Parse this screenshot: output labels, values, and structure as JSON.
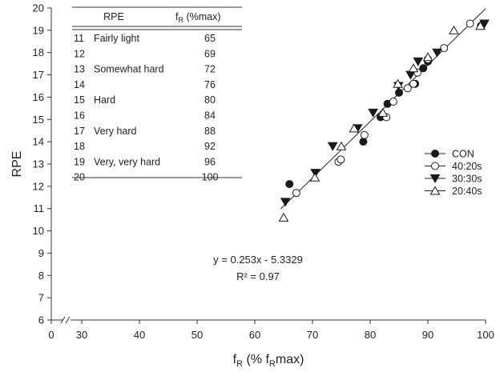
{
  "chart_data": {
    "type": "scatter",
    "xlabel": "f",
    "xlabel_sub": "R",
    "xlabel_rest_1": " (% f",
    "xlabel_sub2": "R",
    "xlabel_rest_2": "max)",
    "ylabel": "RPE",
    "xlim": [
      0,
      100
    ],
    "ylim": [
      6,
      20
    ],
    "x_break_after": 0,
    "x_break_resume": 25,
    "x_ticks": [
      0,
      30,
      40,
      50,
      60,
      70,
      80,
      90,
      100
    ],
    "x_tick_labels": [
      "0",
      "30",
      "40",
      "50",
      "60",
      "70",
      "80",
      "90",
      "100"
    ],
    "y_ticks": [
      6,
      7,
      8,
      9,
      10,
      11,
      12,
      13,
      14,
      15,
      16,
      17,
      18,
      19,
      20
    ],
    "y_tick_labels": [
      "6",
      "7",
      "8",
      "9",
      "10",
      "11",
      "12",
      "13",
      "14",
      "15",
      "16",
      "17",
      "18",
      "19",
      "20"
    ],
    "series": [
      {
        "name": "CON",
        "marker": "filled-circle",
        "points": [
          [
            66.0,
            12.1
          ],
          [
            78.8,
            14.0
          ],
          [
            81.8,
            15.1
          ],
          [
            83.0,
            15.7
          ],
          [
            85.0,
            16.2
          ],
          [
            87.8,
            16.6
          ],
          [
            89.2,
            17.3
          ],
          [
            90.0,
            17.6
          ],
          [
            99.2,
            19.2
          ]
        ]
      },
      {
        "name": "40:20s",
        "marker": "open-circle",
        "points": [
          [
            67.2,
            11.7
          ],
          [
            74.5,
            13.1
          ],
          [
            74.9,
            13.2
          ],
          [
            79.0,
            14.3
          ],
          [
            82.8,
            15.1
          ],
          [
            84.0,
            15.8
          ],
          [
            86.5,
            16.4
          ],
          [
            87.5,
            16.6
          ],
          [
            88.2,
            17.1
          ],
          [
            90.0,
            17.7
          ],
          [
            92.8,
            18.2
          ],
          [
            97.3,
            19.3
          ]
        ]
      },
      {
        "name": "30:30s",
        "marker": "filled-triangle-down",
        "points": [
          [
            65.3,
            11.3
          ],
          [
            70.5,
            12.6
          ],
          [
            73.5,
            13.8
          ],
          [
            77.8,
            14.6
          ],
          [
            80.5,
            15.3
          ],
          [
            84.9,
            16.5
          ],
          [
            87.0,
            17.0
          ],
          [
            88.3,
            17.6
          ],
          [
            91.6,
            18.0
          ],
          [
            99.8,
            19.3
          ]
        ]
      },
      {
        "name": "20:40s",
        "marker": "open-triangle-up",
        "points": [
          [
            65.0,
            10.6
          ],
          [
            70.4,
            12.4
          ],
          [
            75.0,
            13.8
          ],
          [
            77.2,
            14.6
          ],
          [
            82.2,
            15.3
          ],
          [
            84.8,
            16.6
          ],
          [
            87.5,
            17.3
          ],
          [
            90.0,
            17.8
          ],
          [
            94.5,
            19.0
          ],
          [
            99.1,
            19.2
          ]
        ]
      }
    ],
    "regression": {
      "slope": 0.253,
      "intercept": -5.3329,
      "x_range": [
        64.5,
        100
      ],
      "equation_text": "y = 0.253x - 5.3329",
      "r2_text": "R² = 0.97"
    },
    "legend_position": "right-middle",
    "inset_table": {
      "header_rpe": "RPE",
      "header_fr_main": "f",
      "header_fr_sub": "R",
      "header_fr_rest": " (%max)",
      "rows": [
        {
          "rpe": "11",
          "desc": "Fairly light",
          "value": "65"
        },
        {
          "rpe": "12",
          "desc": "",
          "value": "69"
        },
        {
          "rpe": "13",
          "desc": "Somewhat hard",
          "value": "72"
        },
        {
          "rpe": "14",
          "desc": "",
          "value": "76"
        },
        {
          "rpe": "15",
          "desc": "Hard",
          "value": "80"
        },
        {
          "rpe": "16",
          "desc": "",
          "value": "84"
        },
        {
          "rpe": "17",
          "desc": "Very hard",
          "value": "88"
        },
        {
          "rpe": "18",
          "desc": "",
          "value": "92"
        },
        {
          "rpe": "19",
          "desc": "Very, very hard",
          "value": "96"
        },
        {
          "rpe": "20",
          "desc": "",
          "value": "100"
        }
      ]
    }
  }
}
